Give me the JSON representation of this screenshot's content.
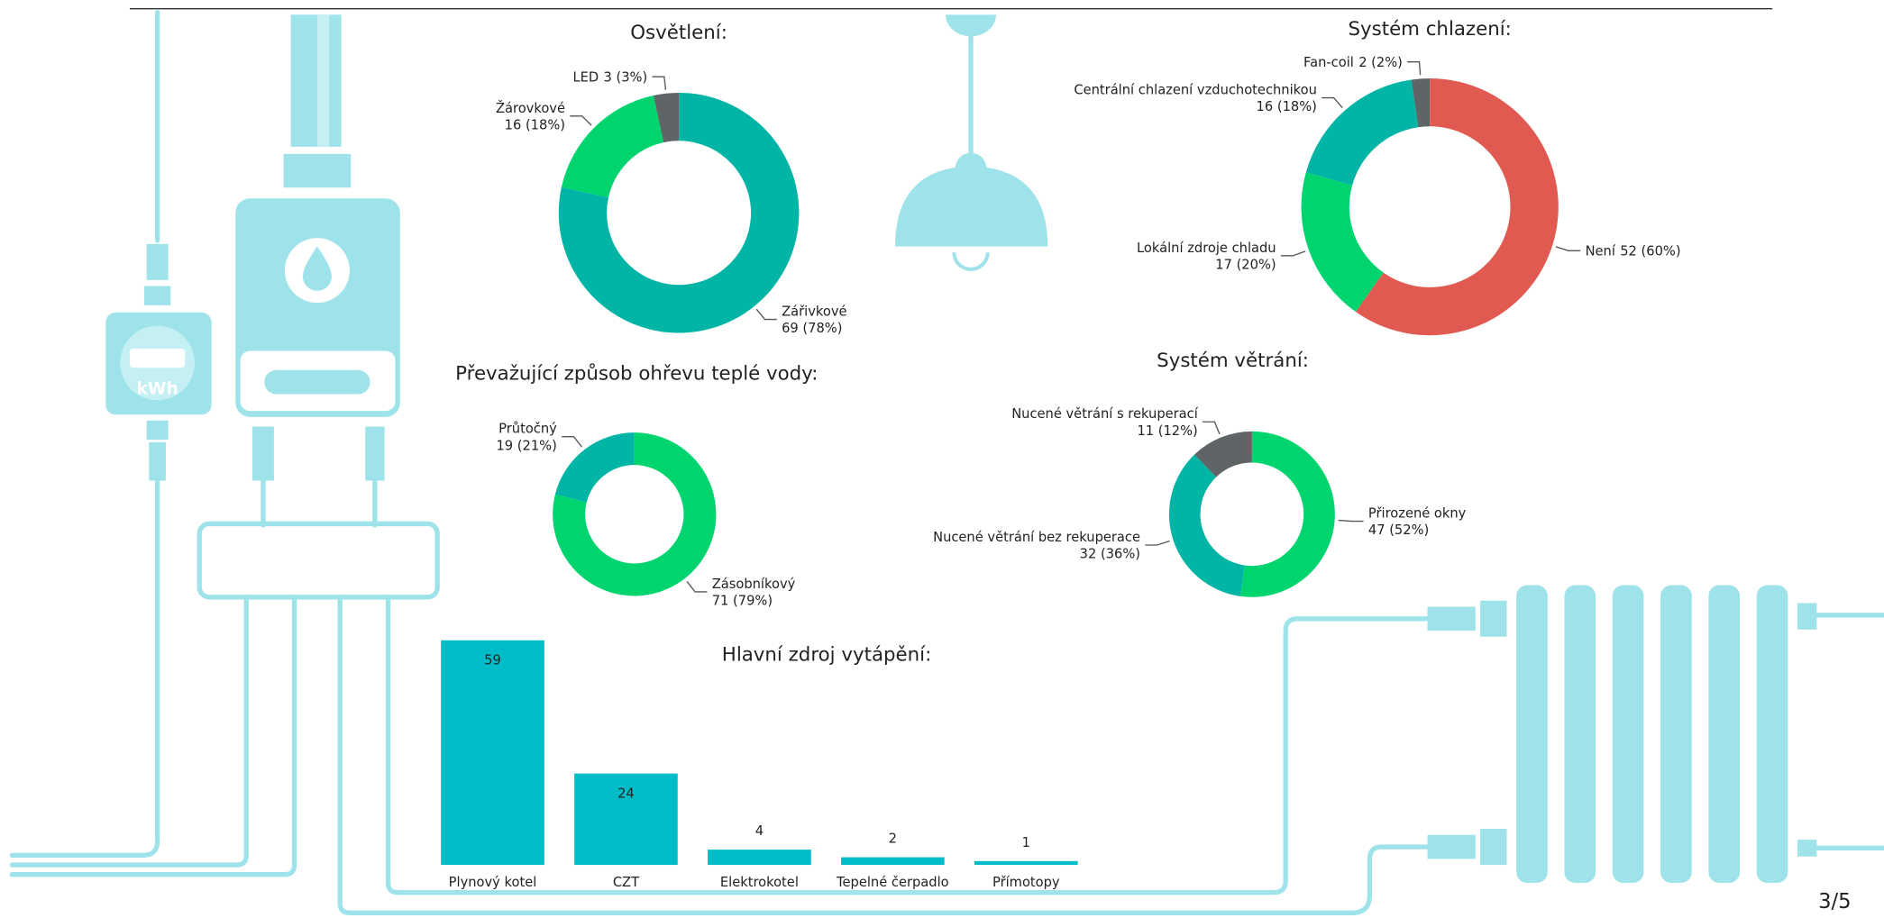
{
  "chart_data": [
    {
      "type": "donut",
      "title": "Osvětlení:",
      "categories": [
        "LED",
        "Žárovkové",
        "Zářivkové"
      ],
      "values": [
        3,
        16,
        69
      ],
      "value_labels": [
        "3 (3%)",
        "16 (18%)",
        "69 (78%)"
      ],
      "colors": [
        "#5f6566",
        "#00d46e",
        "#00b5a5"
      ]
    },
    {
      "type": "donut",
      "title": "Systém chlazení:",
      "categories": [
        "Fan-coil",
        "Centrální chlazení vzduchotechnikou",
        "Lokální zdroje chladu",
        "Není"
      ],
      "values": [
        2,
        16,
        17,
        52
      ],
      "value_labels": [
        "2 (2%)",
        "16 (18%)",
        "17 (20%)",
        "52 (60%)"
      ],
      "colors": [
        "#5f6566",
        "#00b5a5",
        "#00d46e",
        "#e05a52"
      ]
    },
    {
      "type": "donut",
      "title": "Převažující způsob ohřevu teplé vody:",
      "categories": [
        "Průtočný",
        "Zásobníkový"
      ],
      "values": [
        19,
        71
      ],
      "value_labels": [
        "19 (21%)",
        "71 (79%)"
      ],
      "colors": [
        "#00b5a5",
        "#00d46e"
      ]
    },
    {
      "type": "donut",
      "title": "Systém větrání:",
      "categories": [
        "Nucené větrání s rekuperací",
        "Nucené větrání bez rekuperace",
        "Přirozené okny"
      ],
      "values": [
        11,
        32,
        47
      ],
      "value_labels": [
        "11 (12%)",
        "32 (36%)",
        "47 (52%)"
      ],
      "colors": [
        "#5f6566",
        "#00b5a5",
        "#00d46e"
      ]
    },
    {
      "type": "bar",
      "title": "Hlavní zdroj vytápění:",
      "categories": [
        "Plynový kotel",
        "CZT",
        "Elektrokotel",
        "Tepelné čerpadlo",
        "Přímotopy"
      ],
      "values": [
        59,
        24,
        4,
        2,
        1
      ],
      "color": "#00bcc8"
    }
  ],
  "meter": {
    "label": "kWh"
  },
  "page_number": "3/5"
}
